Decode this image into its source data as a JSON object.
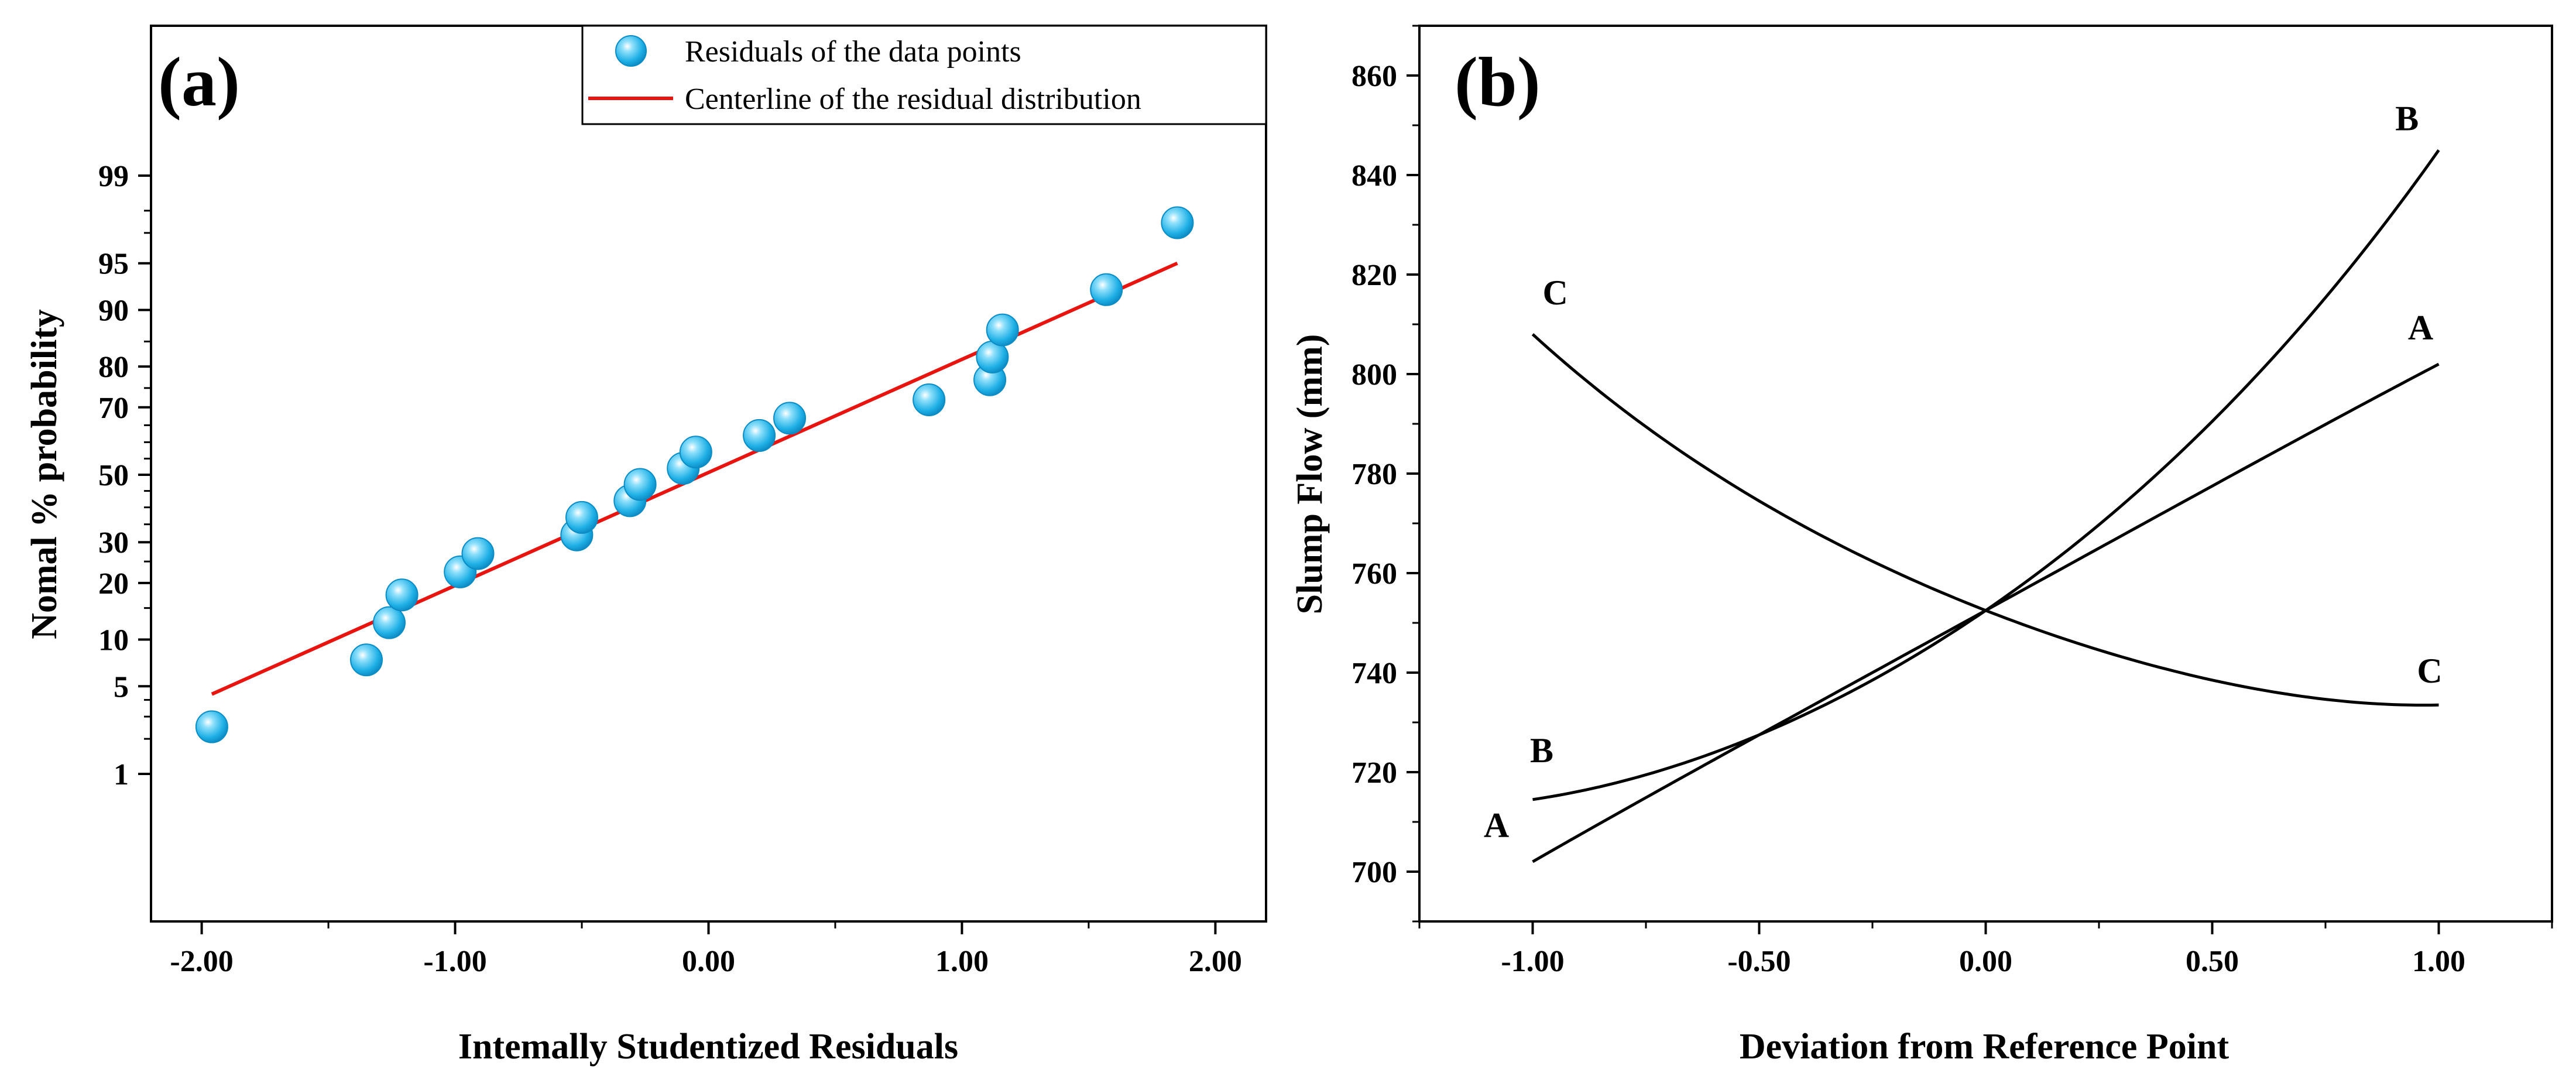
{
  "chart_data": [
    {
      "type": "scatter",
      "panel_label": "(a)",
      "xlabel": "Intemally Studentized Residuals",
      "ylabel": "Nomal % probability",
      "xlim": [
        -2.2,
        2.2
      ],
      "x_ticks": [
        -2.0,
        -1.0,
        0.0,
        1.0,
        2.0
      ],
      "x_tick_labels": [
        "-2.00",
        "-1.00",
        "0.00",
        "1.00",
        "2.00"
      ],
      "y_scale": "probability",
      "y_ticks": [
        1,
        5,
        10,
        20,
        30,
        50,
        70,
        80,
        90,
        95,
        99
      ],
      "y_tick_labels": [
        "1",
        "5",
        "10",
        "20",
        "30",
        "50",
        "70",
        "80",
        "90",
        "95",
        "99"
      ],
      "legend_position": "top-right",
      "series": [
        {
          "name": "Residuals of the data points",
          "kind": "points",
          "color": "#29b6e8",
          "points": [
            {
              "x": -1.96,
              "y": 2.5
            },
            {
              "x": -1.35,
              "y": 7.5
            },
            {
              "x": -1.26,
              "y": 12.5
            },
            {
              "x": -1.21,
              "y": 17.5
            },
            {
              "x": -0.98,
              "y": 22.5
            },
            {
              "x": -0.91,
              "y": 27
            },
            {
              "x": -0.52,
              "y": 32
            },
            {
              "x": -0.5,
              "y": 37
            },
            {
              "x": -0.31,
              "y": 42
            },
            {
              "x": -0.27,
              "y": 47
            },
            {
              "x": -0.1,
              "y": 52
            },
            {
              "x": -0.05,
              "y": 57
            },
            {
              "x": 0.2,
              "y": 62
            },
            {
              "x": 0.32,
              "y": 67
            },
            {
              "x": 0.87,
              "y": 72
            },
            {
              "x": 1.11,
              "y": 77
            },
            {
              "x": 1.12,
              "y": 82
            },
            {
              "x": 1.16,
              "y": 87
            },
            {
              "x": 1.57,
              "y": 92.5
            },
            {
              "x": 1.85,
              "y": 97.5
            }
          ]
        },
        {
          "name": "Centerline of the residual distribution",
          "kind": "line",
          "color": "#e8140f",
          "points": [
            {
              "x": -1.96,
              "y": 4.4
            },
            {
              "x": 1.85,
              "y": 95
            }
          ]
        }
      ]
    },
    {
      "type": "line",
      "panel_label": "(b)",
      "xlabel": "Deviation from Reference Point",
      "ylabel": "Slump Flow (mm)",
      "xlim": [
        -1.25,
        1.25
      ],
      "ylim": [
        690,
        870
      ],
      "x_ticks": [
        -1.0,
        -0.5,
        0.0,
        0.5,
        1.0
      ],
      "x_tick_labels": [
        "-1.00",
        "-0.50",
        "0.00",
        "0.50",
        "1.00"
      ],
      "y_ticks": [
        700,
        720,
        740,
        760,
        780,
        800,
        820,
        840,
        860
      ],
      "y_tick_labels": [
        "700",
        "720",
        "740",
        "760",
        "780",
        "800",
        "820",
        "840",
        "860"
      ],
      "series": [
        {
          "name": "A",
          "color": "#000000",
          "x": [
            -1.0,
            -0.5,
            0.0,
            0.5,
            1.0
          ],
          "y": [
            702,
            727.5,
            752.5,
            777.5,
            802
          ]
        },
        {
          "name": "B",
          "color": "#000000",
          "x": [
            -1.0,
            -0.5,
            0.0,
            0.5,
            1.0
          ],
          "y": [
            714.5,
            727.5,
            752.5,
            790.5,
            845
          ]
        },
        {
          "name": "C",
          "color": "#000000",
          "x": [
            -1.0,
            -0.5,
            0.0,
            0.5,
            1.0
          ],
          "y": [
            808,
            774.5,
            752.5,
            738.5,
            733.5
          ]
        }
      ],
      "curve_labels": [
        {
          "text": "A",
          "x": -1.08,
          "y": 707
        },
        {
          "text": "A",
          "x": 0.96,
          "y": 807
        },
        {
          "text": "B",
          "x": -0.98,
          "y": 722
        },
        {
          "text": "B",
          "x": 0.93,
          "y": 849
        },
        {
          "text": "C",
          "x": -0.95,
          "y": 814
        },
        {
          "text": "C",
          "x": 0.98,
          "y": 738
        }
      ]
    }
  ]
}
